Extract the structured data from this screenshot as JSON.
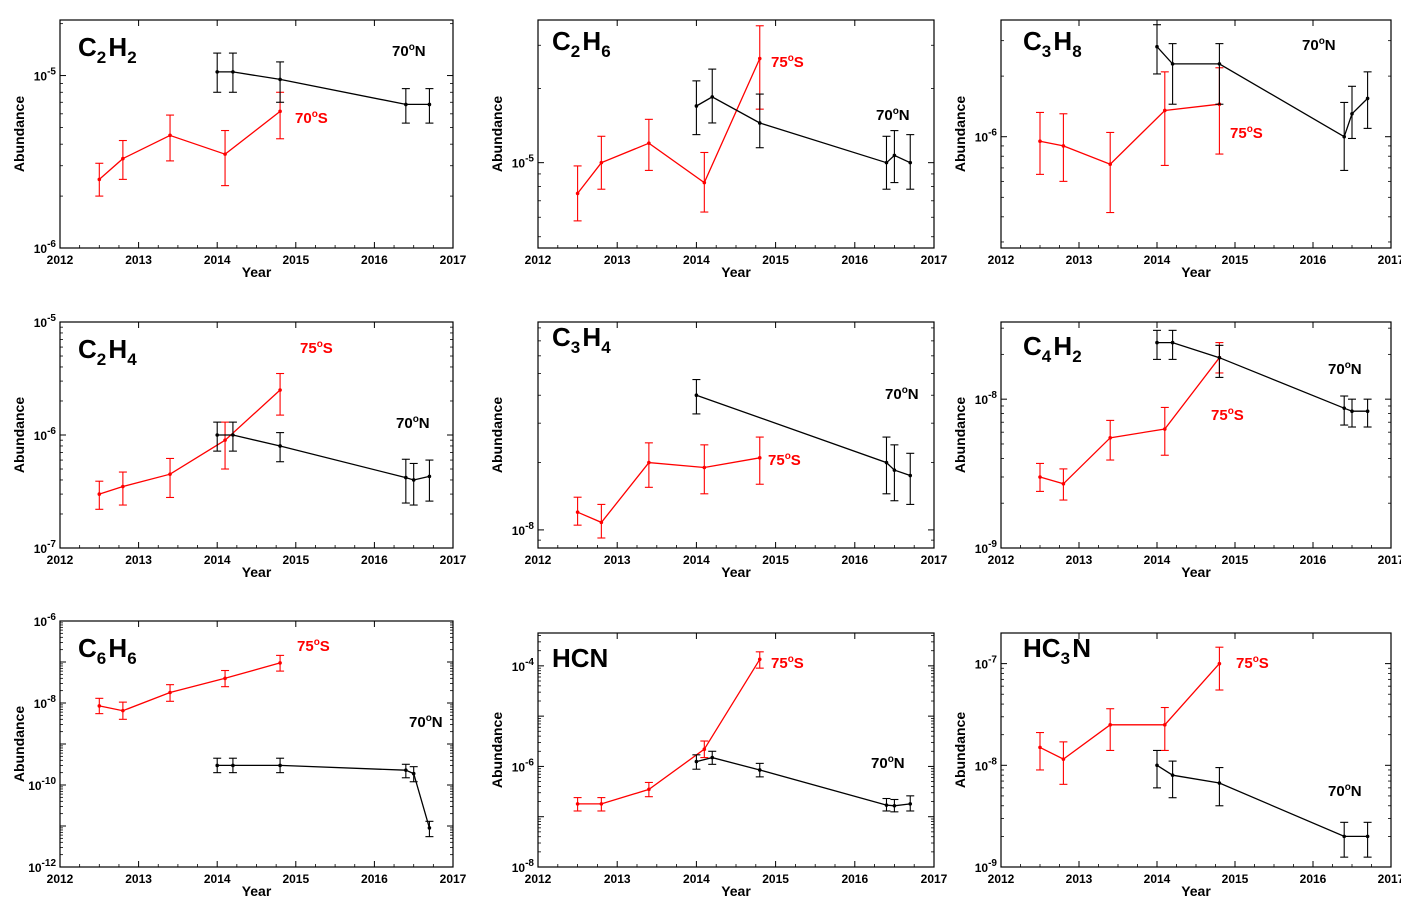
{
  "colors": {
    "south": "#ff0000",
    "north": "#000000"
  },
  "chart_data": [
    {
      "type": "line",
      "species": "C2H2",
      "species_parts": [
        [
          "C",
          "2"
        ],
        [
          "H",
          "2"
        ]
      ],
      "xlabel": "Year",
      "ylabel": "Abundance",
      "xlim": [
        2012,
        2017
      ],
      "ylim": [
        1e-06,
        2.1e-05
      ],
      "yscale": "log",
      "xticks": [
        2012,
        2013,
        2014,
        2015,
        2016,
        2017
      ],
      "yticks": [
        {
          "value": 1e-06,
          "exp": "-6"
        },
        {
          "value": 1e-05,
          "exp": "-5"
        }
      ],
      "series": [
        {
          "name": "70°S",
          "deg": "70",
          "hemi": "S",
          "color": "south",
          "x": [
            2012.5,
            2012.8,
            2013.4,
            2014.1,
            2014.8
          ],
          "y": [
            2.5e-06,
            3.3e-06,
            4.5e-06,
            3.5e-06,
            6.2e-06
          ],
          "lo": [
            2e-06,
            2.5e-06,
            3.2e-06,
            2.3e-06,
            4.3e-06
          ],
          "hi": [
            3.1e-06,
            4.2e-06,
            5.9e-06,
            4.8e-06,
            8e-06
          ]
        },
        {
          "name": "70°N",
          "deg": "70",
          "hemi": "N",
          "color": "north",
          "x": [
            2014.0,
            2014.2,
            2014.8,
            2016.4,
            2016.7
          ],
          "y": [
            1.05e-05,
            1.05e-05,
            9.5e-06,
            6.8e-06,
            6.8e-06
          ],
          "lo": [
            8e-06,
            8e-06,
            7e-06,
            5.3e-06,
            5.3e-06
          ],
          "hi": [
            1.35e-05,
            1.35e-05,
            1.2e-05,
            8.4e-06,
            8.4e-06
          ]
        }
      ]
    },
    {
      "type": "line",
      "species": "C2H6",
      "species_parts": [
        [
          "C",
          "2"
        ],
        [
          "H",
          "6"
        ]
      ],
      "xlabel": "Year",
      "ylabel": "Abundance",
      "xlim": [
        2012,
        2017
      ],
      "ylim": [
        4.5e-06,
        3.8e-05
      ],
      "yscale": "log",
      "xticks": [
        2012,
        2013,
        2014,
        2015,
        2016,
        2017
      ],
      "yticks": [
        {
          "value": 1e-05,
          "exp": "-5"
        }
      ],
      "series": [
        {
          "name": "75°S",
          "deg": "75",
          "hemi": "S",
          "color": "south",
          "x": [
            2012.5,
            2012.8,
            2013.4,
            2014.1,
            2014.8
          ],
          "y": [
            7.5e-06,
            1e-05,
            1.2e-05,
            8.3e-06,
            2.65e-05
          ],
          "lo": [
            5.8e-06,
            7.8e-06,
            9.3e-06,
            6.3e-06,
            1.65e-05
          ],
          "hi": [
            9.7e-06,
            1.28e-05,
            1.5e-05,
            1.1e-05,
            3.6e-05
          ]
        },
        {
          "name": "70°N",
          "deg": "70",
          "hemi": "N",
          "color": "north",
          "x": [
            2014.0,
            2014.2,
            2014.8,
            2016.4,
            2016.5,
            2016.7
          ],
          "y": [
            1.7e-05,
            1.85e-05,
            1.45e-05,
            1e-05,
            1.07e-05,
            1e-05
          ],
          "lo": [
            1.3e-05,
            1.45e-05,
            1.15e-05,
            7.8e-06,
            8.3e-06,
            7.8e-06
          ],
          "hi": [
            2.15e-05,
            2.4e-05,
            1.9e-05,
            1.28e-05,
            1.35e-05,
            1.3e-05
          ]
        }
      ]
    },
    {
      "type": "line",
      "species": "C3H8",
      "species_parts": [
        [
          "C",
          "3"
        ],
        [
          "H",
          "8"
        ]
      ],
      "xlabel": "Year",
      "ylabel": "Abundance",
      "xlim": [
        2012,
        2017
      ],
      "ylim": [
        2.8e-07,
        3.8e-06
      ],
      "yscale": "log",
      "xticks": [
        2012,
        2013,
        2014,
        2015,
        2016,
        2017
      ],
      "yticks": [
        {
          "value": 1e-06,
          "exp": "-6"
        }
      ],
      "series": [
        {
          "name": "75°S",
          "deg": "75",
          "hemi": "S",
          "color": "south",
          "x": [
            2012.5,
            2012.8,
            2013.4,
            2014.1,
            2014.8
          ],
          "y": [
            9.5e-07,
            9e-07,
            7.3e-07,
            1.35e-06,
            1.45e-06
          ],
          "lo": [
            6.5e-07,
            6e-07,
            4.2e-07,
            7.2e-07,
            8.2e-07
          ],
          "hi": [
            1.32e-06,
            1.3e-06,
            1.05e-06,
            2.1e-06,
            2.2e-06
          ]
        },
        {
          "name": "70°N",
          "deg": "70",
          "hemi": "N",
          "color": "north",
          "x": [
            2014.0,
            2014.2,
            2014.8,
            2016.4,
            2016.5,
            2016.7
          ],
          "y": [
            2.8e-06,
            2.3e-06,
            2.3e-06,
            1e-06,
            1.3e-06,
            1.55e-06
          ],
          "lo": [
            2.05e-06,
            1.45e-06,
            1.45e-06,
            6.8e-07,
            9.8e-07,
            1.1e-06
          ],
          "hi": [
            3.6e-06,
            2.9e-06,
            2.9e-06,
            1.48e-06,
            1.78e-06,
            2.1e-06
          ]
        }
      ]
    },
    {
      "type": "line",
      "species": "C2H4",
      "species_parts": [
        [
          "C",
          "2"
        ],
        [
          "H",
          "4"
        ]
      ],
      "xlabel": "Year",
      "ylabel": "Abundance",
      "xlim": [
        2012,
        2017
      ],
      "ylim": [
        1e-07,
        1e-05
      ],
      "yscale": "log",
      "xticks": [
        2012,
        2013,
        2014,
        2015,
        2016,
        2017
      ],
      "yticks": [
        {
          "value": 1e-07,
          "exp": "-7"
        },
        {
          "value": 1e-06,
          "exp": "-6"
        },
        {
          "value": 1e-05,
          "exp": "-5"
        }
      ],
      "series": [
        {
          "name": "75°S",
          "deg": "75",
          "hemi": "S",
          "color": "south",
          "x": [
            2012.5,
            2012.8,
            2013.4,
            2014.1,
            2014.8
          ],
          "y": [
            3e-07,
            3.5e-07,
            4.5e-07,
            9e-07,
            2.5e-06
          ],
          "lo": [
            2.2e-07,
            2.4e-07,
            2.8e-07,
            5e-07,
            1.5e-06
          ],
          "hi": [
            3.9e-07,
            4.7e-07,
            6.2e-07,
            1.3e-06,
            3.5e-06
          ]
        },
        {
          "name": "70°N",
          "deg": "70",
          "hemi": "N",
          "color": "north",
          "x": [
            2014.0,
            2014.2,
            2014.8,
            2016.4,
            2016.5,
            2016.7
          ],
          "y": [
            1e-06,
            1e-06,
            8e-07,
            4.2e-07,
            4e-07,
            4.3e-07
          ],
          "lo": [
            7.2e-07,
            7.2e-07,
            5.8e-07,
            2.5e-07,
            2.4e-07,
            2.6e-07
          ],
          "hi": [
            1.3e-06,
            1.3e-06,
            1.05e-06,
            6.1e-07,
            5.6e-07,
            6e-07
          ]
        }
      ]
    },
    {
      "type": "line",
      "species": "C3H4",
      "species_parts": [
        [
          "C",
          "3"
        ],
        [
          "H",
          "4"
        ]
      ],
      "xlabel": "Year",
      "ylabel": "Abundance",
      "xlim": [
        2012,
        2017
      ],
      "ylim": [
        8.3e-09,
        8.5e-08
      ],
      "yscale": "log",
      "xticks": [
        2012,
        2013,
        2014,
        2015,
        2016,
        2017
      ],
      "yticks": [
        {
          "value": 1e-08,
          "exp": "-8"
        }
      ],
      "series": [
        {
          "name": "75°S",
          "deg": "75",
          "hemi": "S",
          "color": "south",
          "x": [
            2012.5,
            2012.8,
            2013.4,
            2014.1,
            2014.8
          ],
          "y": [
            1.2e-08,
            1.08e-08,
            2e-08,
            1.9e-08,
            2.1e-08
          ],
          "lo": [
            1.05e-08,
            9.2e-09,
            1.55e-08,
            1.45e-08,
            1.6e-08
          ],
          "hi": [
            1.4e-08,
            1.3e-08,
            2.45e-08,
            2.4e-08,
            2.6e-08
          ]
        },
        {
          "name": "70°N",
          "deg": "70",
          "hemi": "N",
          "color": "north",
          "x": [
            2014.0,
            2016.4,
            2016.5,
            2016.7
          ],
          "y": [
            4e-08,
            2e-08,
            1.85e-08,
            1.75e-08
          ],
          "lo": [
            3.3e-08,
            1.45e-08,
            1.35e-08,
            1.3e-08
          ],
          "hi": [
            4.7e-08,
            2.6e-08,
            2.4e-08,
            2.2e-08
          ]
        }
      ]
    },
    {
      "type": "line",
      "species": "C4H2",
      "species_parts": [
        [
          "C",
          "4"
        ],
        [
          "H",
          "2"
        ]
      ],
      "xlabel": "Year",
      "ylabel": "Abundance",
      "xlim": [
        2012,
        2017
      ],
      "ylim": [
        1e-09,
        3.3e-08
      ],
      "yscale": "log",
      "xticks": [
        2012,
        2013,
        2014,
        2015,
        2016,
        2017
      ],
      "yticks": [
        {
          "value": 1e-09,
          "exp": "-9"
        },
        {
          "value": 1e-08,
          "exp": "-8"
        }
      ],
      "series": [
        {
          "name": "75°S",
          "deg": "75",
          "hemi": "S",
          "color": "south",
          "x": [
            2012.5,
            2012.8,
            2013.4,
            2014.1,
            2014.8
          ],
          "y": [
            3e-09,
            2.7e-09,
            5.5e-09,
            6.3e-09,
            1.9e-08
          ],
          "lo": [
            2.4e-09,
            2.1e-09,
            3.9e-09,
            4.2e-09,
            1.5e-08
          ],
          "hi": [
            3.7e-09,
            3.4e-09,
            7.2e-09,
            8.8e-09,
            2.4e-08
          ]
        },
        {
          "name": "70°N",
          "deg": "70",
          "hemi": "N",
          "color": "north",
          "x": [
            2014.0,
            2014.2,
            2014.8,
            2016.4,
            2016.5,
            2016.7
          ],
          "y": [
            2.4e-08,
            2.4e-08,
            1.9e-08,
            8.7e-09,
            8.3e-09,
            8.3e-09
          ],
          "lo": [
            1.85e-08,
            1.85e-08,
            1.4e-08,
            6.7e-09,
            6.5e-09,
            6.5e-09
          ],
          "hi": [
            2.9e-08,
            2.9e-08,
            2.3e-08,
            1.05e-08,
            1e-08,
            1e-08
          ]
        }
      ]
    },
    {
      "type": "line",
      "species": "C6H6",
      "species_parts": [
        [
          "C",
          "6"
        ],
        [
          "H",
          "6"
        ]
      ],
      "xlabel": "Year",
      "ylabel": "Abundance",
      "xlim": [
        2012,
        2017
      ],
      "ylim": [
        1e-12,
        1e-06
      ],
      "yscale": "log",
      "xticks": [
        2012,
        2013,
        2014,
        2015,
        2016,
        2017
      ],
      "yticks": [
        {
          "value": 1e-12,
          "exp": "-12"
        },
        {
          "value": 1e-10,
          "exp": "-10"
        },
        {
          "value": 1e-08,
          "exp": "-8"
        },
        {
          "value": 1e-06,
          "exp": "-6"
        }
      ],
      "series": [
        {
          "name": "75°S",
          "deg": "75",
          "hemi": "S",
          "color": "south",
          "x": [
            2012.5,
            2012.8,
            2013.4,
            2014.1,
            2014.8
          ],
          "y": [
            8.5e-09,
            6.5e-09,
            1.8e-08,
            4e-08,
            9.5e-08
          ],
          "lo": [
            5.5e-09,
            4e-09,
            1.1e-08,
            2.5e-08,
            6e-08
          ],
          "hi": [
            1.3e-08,
            1.05e-08,
            2.8e-08,
            6.2e-08,
            1.45e-07
          ]
        },
        {
          "name": "70°N",
          "deg": "70",
          "hemi": "N",
          "color": "north",
          "x": [
            2014.0,
            2014.2,
            2014.8,
            2016.4,
            2016.5,
            2016.7
          ],
          "y": [
            3e-10,
            3e-10,
            3e-10,
            2.3e-10,
            1.9e-10,
            9e-12
          ],
          "lo": [
            2e-10,
            2e-10,
            2e-10,
            1.5e-10,
            1.2e-10,
            5.5e-12
          ],
          "hi": [
            4.5e-10,
            4.5e-10,
            4.5e-10,
            3.2e-10,
            2.8e-10,
            1.3e-11
          ]
        }
      ]
    },
    {
      "type": "line",
      "species": "HCN",
      "species_parts": [
        [
          "HCN",
          ""
        ]
      ],
      "xlabel": "Year",
      "ylabel": "Abundance",
      "xlim": [
        2012,
        2017
      ],
      "ylim": [
        1e-08,
        0.00045
      ],
      "yscale": "log",
      "xticks": [
        2012,
        2013,
        2014,
        2015,
        2016,
        2017
      ],
      "yticks": [
        {
          "value": 1e-08,
          "exp": "-8"
        },
        {
          "value": 1e-06,
          "exp": "-6"
        },
        {
          "value": 0.0001,
          "exp": "-4"
        }
      ],
      "series": [
        {
          "name": "75°S",
          "deg": "75",
          "hemi": "S",
          "color": "south",
          "x": [
            2012.5,
            2012.8,
            2013.4,
            2014.1,
            2014.8
          ],
          "y": [
            1.8e-07,
            1.8e-07,
            3.5e-07,
            2.2e-06,
            0.000135
          ],
          "lo": [
            1.3e-07,
            1.3e-07,
            2.5e-07,
            1.5e-06,
            9e-05
          ],
          "hi": [
            2.4e-07,
            2.4e-07,
            4.8e-07,
            3.2e-06,
            0.00019
          ]
        },
        {
          "name": "70°N",
          "deg": "70",
          "hemi": "N",
          "color": "north",
          "x": [
            2014.0,
            2014.2,
            2014.8,
            2016.4,
            2016.5,
            2016.7
          ],
          "y": [
            1.25e-06,
            1.5e-06,
            8.5e-07,
            1.7e-07,
            1.65e-07,
            1.8e-07
          ],
          "lo": [
            8.8e-07,
            1.1e-06,
            6.2e-07,
            1.3e-07,
            1.25e-07,
            1.3e-07
          ],
          "hi": [
            1.7e-06,
            2e-06,
            1.15e-06,
            2.3e-07,
            2.2e-07,
            2.6e-07
          ]
        }
      ]
    },
    {
      "type": "line",
      "species": "HC3N",
      "species_parts": [
        [
          "HC",
          "3"
        ],
        [
          "N",
          ""
        ]
      ],
      "xlabel": "Year",
      "ylabel": "Abundance",
      "xlim": [
        2012,
        2017
      ],
      "ylim": [
        1e-09,
        2e-07
      ],
      "yscale": "log",
      "xticks": [
        2012,
        2013,
        2014,
        2015,
        2016,
        2017
      ],
      "yticks": [
        {
          "value": 1e-09,
          "exp": "-9"
        },
        {
          "value": 1e-08,
          "exp": "-8"
        },
        {
          "value": 1e-07,
          "exp": "-7"
        }
      ],
      "series": [
        {
          "name": "75°S",
          "deg": "75",
          "hemi": "S",
          "color": "south",
          "x": [
            2012.5,
            2012.8,
            2013.4,
            2014.1,
            2014.8
          ],
          "y": [
            1.5e-08,
            1.15e-08,
            2.5e-08,
            2.5e-08,
            1e-07
          ],
          "lo": [
            9e-09,
            6.5e-09,
            1.4e-08,
            1.4e-08,
            5.5e-08
          ],
          "hi": [
            2.1e-08,
            1.7e-08,
            3.6e-08,
            3.7e-08,
            1.45e-07
          ]
        },
        {
          "name": "70°N",
          "deg": "70",
          "hemi": "N",
          "color": "north",
          "x": [
            2014.0,
            2014.2,
            2014.8,
            2016.4,
            2016.7
          ],
          "y": [
            1e-08,
            8e-09,
            6.7e-09,
            2e-09,
            2e-09
          ],
          "lo": [
            6e-09,
            4.8e-09,
            4e-09,
            1.25e-09,
            1.25e-09
          ],
          "hi": [
            1.4e-08,
            1.1e-08,
            9.5e-09,
            2.75e-09,
            2.75e-09
          ]
        }
      ]
    }
  ]
}
